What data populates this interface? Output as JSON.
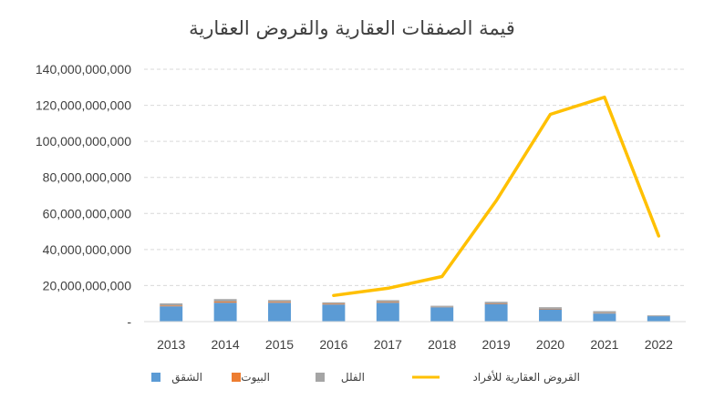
{
  "chart_data": {
    "type": "bar+line",
    "title": "قيمة الصفقات العقارية والقروض العقارية",
    "categories": [
      "2013",
      "2014",
      "2015",
      "2016",
      "2017",
      "2018",
      "2019",
      "2020",
      "2021",
      "2022"
    ],
    "ylim": [
      0,
      140000000000
    ],
    "yticks": [
      0,
      20000000000,
      40000000000,
      60000000000,
      80000000000,
      100000000000,
      120000000000,
      140000000000
    ],
    "ytick_labels": [
      "-",
      "20,000,000,000",
      "40,000,000,000",
      "60,000,000,000",
      "80,000,000,000",
      "100,000,000,000",
      "120,000,000,000",
      "140,000,000,000"
    ],
    "grid": true,
    "legend_position": "bottom",
    "series": [
      {
        "name": "الشقق",
        "kind": "bar",
        "color": "#5B9BD5",
        "values": [
          8500000000,
          10500000000,
          10500000000,
          9500000000,
          10500000000,
          8000000000,
          9800000000,
          6800000000,
          4500000000,
          3000000000
        ]
      },
      {
        "name": "البيوت",
        "kind": "bar",
        "color": "#ED7D31",
        "values": [
          400000000,
          600000000,
          500000000,
          400000000,
          400000000,
          200000000,
          300000000,
          300000000,
          200000000,
          100000000
        ]
      },
      {
        "name": "الفلل",
        "kind": "bar",
        "color": "#A5A5A5",
        "values": [
          1200000000,
          1400000000,
          1000000000,
          800000000,
          1000000000,
          600000000,
          900000000,
          900000000,
          1100000000,
          400000000
        ]
      },
      {
        "name": "القروض العقارية للأفراد",
        "kind": "line",
        "color": "#FFC000",
        "values": [
          null,
          null,
          null,
          14500000000,
          18500000000,
          25000000000,
          67000000000,
          115000000000,
          124500000000,
          47500000000
        ]
      }
    ]
  }
}
